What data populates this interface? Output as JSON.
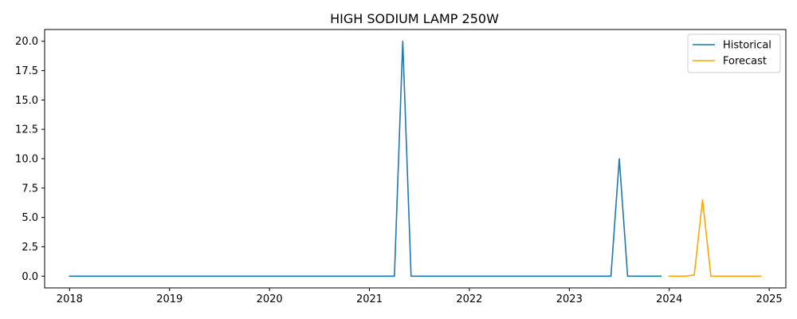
{
  "chart_data": {
    "type": "line",
    "title": "HIGH SODIUM LAMP  250W",
    "xlabel": "",
    "ylabel": "",
    "x_ticks": [
      "2018",
      "2019",
      "2020",
      "2021",
      "2022",
      "2023",
      "2024",
      "2025"
    ],
    "y_ticks": [
      "0.0",
      "2.5",
      "5.0",
      "7.5",
      "10.0",
      "12.5",
      "15.0",
      "17.5",
      "20.0"
    ],
    "xlim": [
      "2017-10",
      "2025-03"
    ],
    "ylim": [
      -1.0,
      21.0
    ],
    "grid": false,
    "legend_position": "top-right",
    "series": [
      {
        "name": "Historical",
        "color": "#1f77b4",
        "start": "2018-01",
        "values": [
          0,
          0,
          0,
          0,
          0,
          0,
          0,
          0,
          0,
          0,
          0,
          0,
          0,
          0,
          0,
          0,
          0,
          0,
          0,
          0,
          0,
          0,
          0,
          0,
          0,
          0,
          0,
          0,
          0,
          0,
          0,
          0,
          0,
          0,
          0,
          0,
          0,
          0,
          0,
          0,
          20,
          0,
          0,
          0,
          0,
          0,
          0,
          0,
          0,
          0,
          0,
          0,
          0,
          0,
          0,
          0,
          0,
          0,
          0,
          0,
          0,
          0,
          0,
          0,
          0,
          0,
          10,
          0,
          0,
          0,
          0,
          0
        ]
      },
      {
        "name": "Forecast",
        "color": "#ffa500",
        "start": "2024-01",
        "values": [
          0,
          0,
          0,
          0.1,
          6.5,
          0,
          0,
          0,
          0,
          0,
          0,
          0
        ]
      }
    ]
  }
}
